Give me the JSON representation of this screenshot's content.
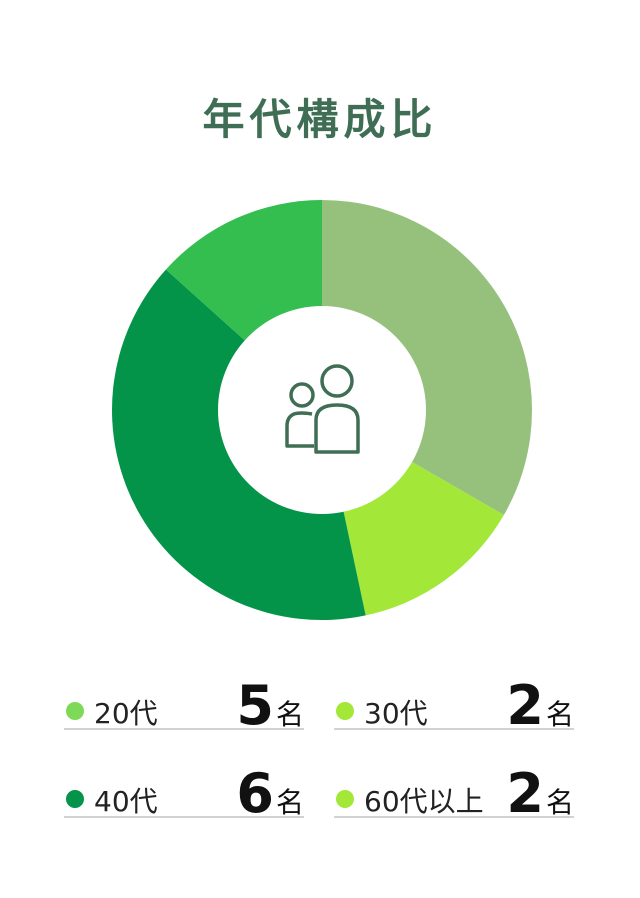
{
  "title": "年代構成比",
  "colors": {
    "title": "#3f6e55",
    "icon": "#3f6e55"
  },
  "center_icon": "people-icon",
  "chart_data": {
    "type": "pie",
    "style": "donut",
    "title": "年代構成比",
    "unit": "名",
    "categories": [
      "20代",
      "30代",
      "40代",
      "60代以上"
    ],
    "values": [
      5,
      2,
      6,
      2
    ],
    "slices": [
      {
        "label": "20代",
        "value": 5,
        "color": "#96c17c"
      },
      {
        "label": "30代",
        "value": 2,
        "color": "#a3e838"
      },
      {
        "label": "40代",
        "value": 6,
        "color": "#03944a"
      },
      {
        "label": "60代以上",
        "value": 2,
        "color": "#33be4f"
      }
    ],
    "legend_placement": "bottom"
  },
  "legend": [
    {
      "label": "20代",
      "value": "5",
      "unit": "名",
      "color": "#7ed957"
    },
    {
      "label": "30代",
      "value": "2",
      "unit": "名",
      "color": "#a3e838"
    },
    {
      "label": "40代",
      "value": "6",
      "unit": "名",
      "color": "#03944a"
    },
    {
      "label": "60代以上",
      "value": "2",
      "unit": "名",
      "color": "#a3e838"
    }
  ]
}
